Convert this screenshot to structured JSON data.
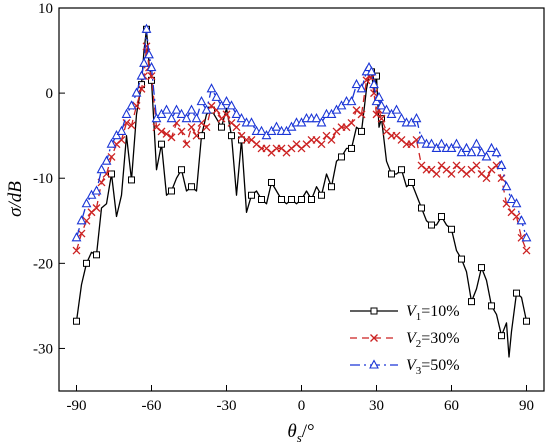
{
  "chart_data": {
    "type": "line",
    "title": "",
    "xlabel": "θs/°",
    "ylabel": "σ/dB",
    "xlim": [
      -97,
      97
    ],
    "ylim": [
      -35,
      10
    ],
    "xticks": [
      -90,
      -60,
      -30,
      0,
      30,
      60,
      90
    ],
    "yticks": [
      10,
      0,
      -10,
      -20,
      -30
    ],
    "grid": false,
    "legend_position": "bottom-right",
    "series": [
      {
        "name": "V1=10%",
        "legend_main": "V",
        "legend_sub": "1",
        "legend_rest": "=10%",
        "color": "#000000",
        "dash": "none",
        "marker": "square",
        "x": [
          -90,
          -88,
          -86,
          -84,
          -82,
          -80,
          -78,
          -76,
          -74,
          -72,
          -70,
          -68,
          -66,
          -64,
          -63,
          -62,
          -61,
          -60,
          -58,
          -56,
          -54,
          -52,
          -50,
          -48,
          -46,
          -44,
          -42,
          -40,
          -38,
          -36,
          -34,
          -32,
          -30,
          -28,
          -26,
          -24,
          -22,
          -20,
          -18,
          -16,
          -14,
          -12,
          -10,
          -8,
          -6,
          -4,
          -2,
          0,
          2,
          4,
          6,
          8,
          10,
          12,
          14,
          16,
          18,
          20,
          22,
          24,
          26,
          27,
          28,
          29,
          30,
          31,
          32,
          34,
          36,
          38,
          40,
          42,
          44,
          46,
          48,
          50,
          52,
          54,
          56,
          58,
          60,
          62,
          64,
          66,
          68,
          70,
          72,
          74,
          76,
          78,
          80,
          82,
          83,
          84,
          86,
          88,
          90
        ],
        "y": [
          -26.8,
          -22.5,
          -20,
          -18.7,
          -19,
          -13.5,
          -13,
          -9.5,
          -14.5,
          -12,
          -5,
          -10.2,
          -2.5,
          1,
          5,
          7.5,
          3.5,
          1.5,
          -9,
          -6,
          -12,
          -11.5,
          -10,
          -9,
          -11.5,
          -11,
          -11.5,
          -5,
          -2.5,
          -2,
          -3,
          -4,
          -1.8,
          -5,
          -12,
          -5.5,
          -14,
          -12,
          -11.5,
          -12.5,
          -13,
          -10.5,
          -11.5,
          -12.5,
          -13,
          -12.5,
          -13,
          -12.5,
          -11.5,
          -12.5,
          -11,
          -12,
          -9.5,
          -11,
          -8,
          -7.5,
          -6.5,
          -6.5,
          -4,
          -4.5,
          0.5,
          2,
          2.5,
          0,
          2,
          -4,
          -3,
          -8,
          -9.5,
          -9.5,
          -9,
          -11,
          -10.5,
          -12,
          -13.5,
          -15,
          -15.5,
          -15.5,
          -14.5,
          -15.5,
          -16,
          -18.5,
          -19.5,
          -21,
          -24.5,
          -23,
          -20.5,
          -22,
          -25,
          -26,
          -28.5,
          -27,
          -31,
          -28,
          -23.5,
          -24,
          -26.8
        ],
        "markers_at": [
          -90,
          -86,
          -82,
          -76,
          -68,
          -64,
          -62,
          -60,
          -56,
          -52,
          -48,
          -44,
          -40,
          -36,
          -32,
          -28,
          -24,
          -20,
          -16,
          -12,
          -8,
          -4,
          0,
          4,
          8,
          12,
          16,
          20,
          24,
          28,
          30,
          32,
          36,
          40,
          44,
          48,
          52,
          56,
          60,
          64,
          68,
          72,
          76,
          80,
          86,
          90
        ]
      },
      {
        "name": "V2=30%",
        "legend_main": "V",
        "legend_sub": "2",
        "legend_rest": "=30%",
        "color": "#cc2222",
        "dash": "7,5",
        "marker": "x",
        "x": [
          -90,
          -88,
          -86,
          -84,
          -82,
          -80,
          -78,
          -76,
          -74,
          -72,
          -70,
          -68,
          -66,
          -64,
          -63,
          -62,
          -61,
          -60,
          -58,
          -56,
          -54,
          -52,
          -50,
          -48,
          -46,
          -44,
          -42,
          -40,
          -38,
          -36,
          -34,
          -32,
          -30,
          -28,
          -26,
          -24,
          -22,
          -20,
          -18,
          -16,
          -14,
          -12,
          -10,
          -8,
          -6,
          -4,
          -2,
          0,
          2,
          4,
          6,
          8,
          10,
          12,
          14,
          16,
          18,
          20,
          22,
          24,
          26,
          27,
          28,
          29,
          30,
          31,
          32,
          34,
          36,
          38,
          40,
          42,
          44,
          46,
          48,
          50,
          52,
          54,
          56,
          58,
          60,
          62,
          64,
          66,
          68,
          70,
          72,
          74,
          76,
          78,
          80,
          82,
          84,
          86,
          88,
          90
        ],
        "y": [
          -18.5,
          -16.5,
          -15,
          -14,
          -13.5,
          -10.5,
          -9.5,
          -7.5,
          -6,
          -5.5,
          -3.5,
          -3.8,
          -1.5,
          0.5,
          2,
          5.5,
          3,
          2,
          -4,
          -4.5,
          -4.8,
          -5.2,
          -3.5,
          -4.5,
          -6,
          -4,
          -5,
          -3.5,
          -4,
          -1.5,
          -2,
          -3,
          -2.5,
          -3.5,
          -4,
          -5,
          -5.5,
          -5.5,
          -6,
          -6.5,
          -6.5,
          -7,
          -6.5,
          -6.5,
          -7,
          -6.5,
          -6,
          -6.5,
          -6,
          -5.5,
          -5.5,
          -6,
          -5,
          -5.5,
          -4.5,
          -4,
          -4,
          -3.5,
          -2,
          -2.5,
          1.5,
          2,
          1.8,
          0,
          -2.5,
          -2,
          -3,
          -4.5,
          -5,
          -5,
          -5.5,
          -6,
          -6,
          -5.5,
          -8.5,
          -9,
          -9,
          -9.5,
          -8.5,
          -9,
          -9.5,
          -8.5,
          -9,
          -9.5,
          -9,
          -8.5,
          -9.5,
          -10,
          -9,
          -8.5,
          -10,
          -13,
          -14,
          -14.5,
          -17,
          -18.5
        ]
      },
      {
        "name": "V3=50%",
        "legend_main": "V",
        "legend_sub": "3",
        "legend_rest": "=50%",
        "color": "#1a35d6",
        "dash": "10,4,2,4",
        "marker": "triangle",
        "x": [
          -90,
          -88,
          -86,
          -84,
          -82,
          -80,
          -78,
          -76,
          -74,
          -72,
          -70,
          -68,
          -66,
          -64,
          -63,
          -62,
          -61,
          -60,
          -58,
          -56,
          -54,
          -52,
          -50,
          -48,
          -46,
          -44,
          -42,
          -40,
          -38,
          -36,
          -34,
          -32,
          -30,
          -28,
          -26,
          -24,
          -22,
          -20,
          -18,
          -16,
          -14,
          -12,
          -10,
          -8,
          -6,
          -4,
          -2,
          0,
          2,
          4,
          6,
          8,
          10,
          12,
          14,
          16,
          18,
          20,
          22,
          24,
          26,
          27,
          28,
          29,
          30,
          31,
          32,
          34,
          36,
          38,
          40,
          42,
          44,
          46,
          48,
          50,
          52,
          54,
          56,
          58,
          60,
          62,
          64,
          66,
          68,
          70,
          72,
          74,
          76,
          78,
          80,
          82,
          84,
          86,
          88,
          90
        ],
        "y": [
          -17,
          -15,
          -13,
          -12,
          -11.5,
          -9,
          -8,
          -6,
          -5,
          -4.5,
          -2.5,
          -1.5,
          0,
          2,
          3.5,
          7.5,
          4.5,
          3,
          -3,
          -2.5,
          -2,
          -3,
          -2,
          -2.5,
          -3,
          -2,
          -3,
          -1,
          -2,
          0.5,
          -0.5,
          -1.5,
          -1,
          -1.5,
          -2.5,
          -3,
          -3.5,
          -3.5,
          -4.5,
          -4.5,
          -5,
          -4.5,
          -4,
          -4.5,
          -4.5,
          -4,
          -3.5,
          -3.5,
          -3,
          -3,
          -3,
          -3.5,
          -2.5,
          -2.5,
          -2,
          -1.5,
          -1,
          -1,
          1,
          0.5,
          2.5,
          3,
          2.5,
          1,
          -1,
          -0.5,
          -1.5,
          -2,
          -2.5,
          -2,
          -3,
          -3.5,
          -3.5,
          -3,
          -5.5,
          -6,
          -6,
          -6.5,
          -6,
          -6.5,
          -6.5,
          -6,
          -7,
          -6.5,
          -7,
          -6,
          -7,
          -7.5,
          -6.5,
          -7,
          -8.5,
          -11,
          -12.5,
          -13,
          -15,
          -17
        ]
      }
    ]
  }
}
